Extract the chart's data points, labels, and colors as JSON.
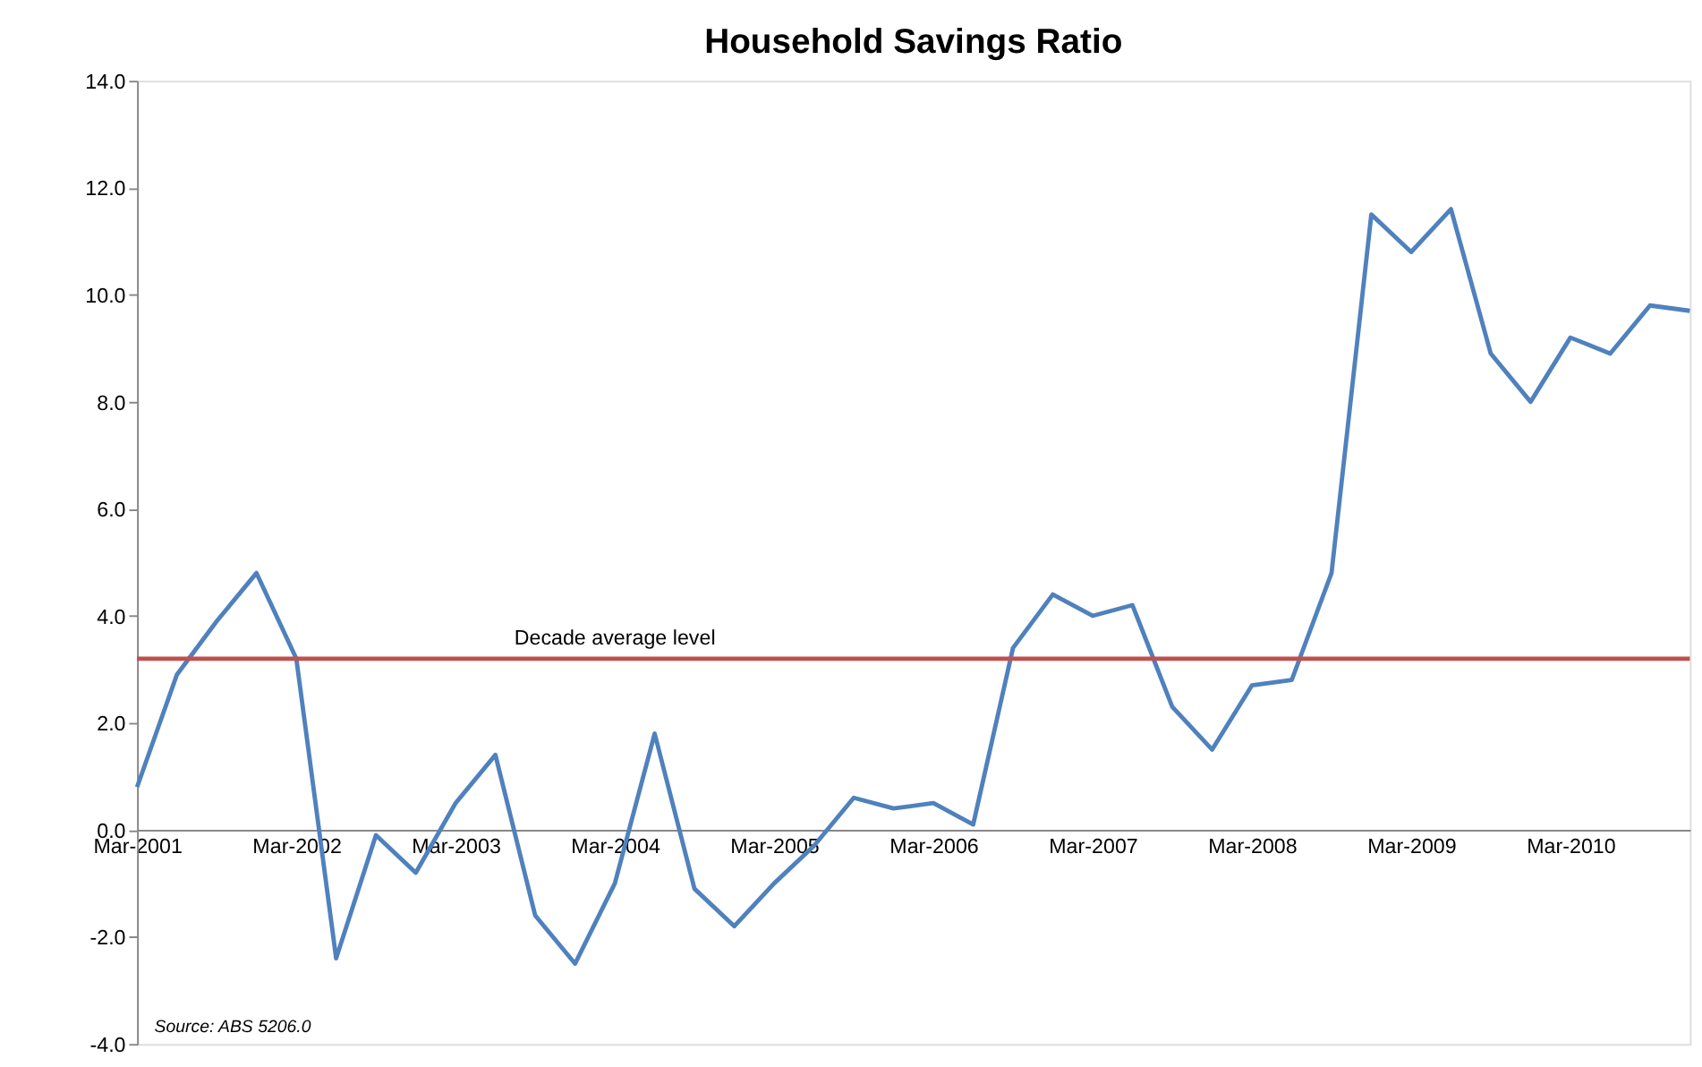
{
  "chart_data": {
    "type": "line",
    "title": "Household Savings Ratio",
    "categories": [
      "Mar-2001",
      null,
      null,
      null,
      "Mar-2002",
      null,
      null,
      null,
      "Mar-2003",
      null,
      null,
      null,
      "Mar-2004",
      null,
      null,
      null,
      "Mar-2005",
      null,
      null,
      null,
      "Mar-2006",
      null,
      null,
      null,
      "Mar-2007",
      null,
      null,
      null,
      "Mar-2008",
      null,
      null,
      null,
      "Mar-2009",
      null,
      null,
      null,
      "Mar-2010",
      null,
      null,
      null
    ],
    "series": [
      {
        "color": "#4f81bd",
        "values": [
          0.8,
          2.9,
          3.9,
          4.8,
          3.2,
          -2.4,
          -0.1,
          -0.8,
          0.5,
          1.4,
          -1.6,
          -2.5,
          -1.0,
          1.8,
          -1.1,
          -1.8,
          -1.0,
          -0.3,
          0.6,
          0.4,
          0.5,
          0.1,
          3.4,
          4.4,
          4.0,
          4.2,
          2.3,
          1.5,
          2.7,
          2.8,
          4.8,
          11.5,
          10.8,
          11.6,
          8.9,
          8.0,
          9.2,
          8.9,
          9.8,
          9.7
        ]
      }
    ],
    "ylim": [
      -4,
      14
    ],
    "yticks": [
      {
        "value": -4,
        "label": "-4.0"
      },
      {
        "value": -2,
        "label": "-2.0"
      },
      {
        "value": 0,
        "label": "0.0"
      },
      {
        "value": 2,
        "label": "2.0"
      },
      {
        "value": 4,
        "label": "4.0"
      },
      {
        "value": 6,
        "label": "6.0"
      },
      {
        "value": 8,
        "label": "8.0"
      },
      {
        "value": 10,
        "label": "10.0"
      },
      {
        "value": 12,
        "label": "12.0"
      },
      {
        "value": 14,
        "label": "14.0"
      }
    ],
    "ref_lines": [
      {
        "axis": "y",
        "value": 3.2,
        "label": "Decade average level",
        "color": "#c0504d"
      }
    ],
    "annotations": [
      "Source: ABS 5206.0"
    ],
    "grid": false,
    "marker": "none",
    "line_style": "solid"
  }
}
